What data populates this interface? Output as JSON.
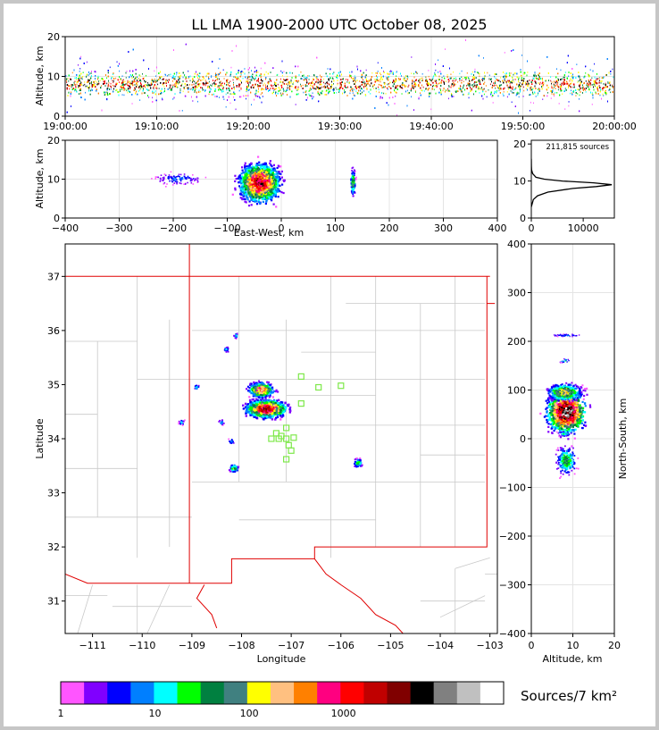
{
  "title": "LL LMA 1900-2000 UTC October 08, 2025",
  "chart_data": [
    {
      "id": "time-height",
      "type": "scatter",
      "xlabel": "",
      "ylabel": "Altitude, km",
      "x_ticks": [
        "19:00:00",
        "19:10:00",
        "19:20:00",
        "19:30:00",
        "19:40:00",
        "19:50:00",
        "20:00:00"
      ],
      "xlim": [
        "19:00:00",
        "20:00:00"
      ],
      "ylim": [
        0,
        20
      ],
      "y_ticks": [
        0,
        10,
        20
      ],
      "series": [
        {
          "description_level": "dense band",
          "altitude_core_km": [
            5,
            11
          ],
          "altitude_range_km": [
            1,
            18
          ]
        }
      ]
    },
    {
      "id": "ew-height",
      "type": "scatter",
      "xlabel": "East-West, km",
      "ylabel": "Altitude, km",
      "xlim": [
        -400,
        400
      ],
      "x_ticks": [
        -400,
        -300,
        -200,
        -100,
        0,
        100,
        200,
        300,
        400
      ],
      "ylim": [
        0,
        20
      ],
      "y_ticks": [
        0,
        10,
        20
      ],
      "clusters": [
        {
          "x": -40,
          "y": 9,
          "peak_density": 1000
        },
        {
          "x": -190,
          "y": 10,
          "peak_density": 5
        },
        {
          "x": 133,
          "y": 9,
          "peak_density": 40
        }
      ]
    },
    {
      "id": "altitude-histogram",
      "type": "line",
      "annotation": "211,815 sources",
      "xlim": [
        0,
        16000
      ],
      "x_ticks": [
        0,
        10000
      ],
      "ylim": [
        0,
        21
      ],
      "y_ticks": [
        0,
        10,
        20
      ],
      "profile": [
        {
          "alt": 3,
          "count": 0
        },
        {
          "alt": 5,
          "count": 400
        },
        {
          "alt": 6,
          "count": 1200
        },
        {
          "alt": 7,
          "count": 3200
        },
        {
          "alt": 8,
          "count": 8000
        },
        {
          "alt": 8.5,
          "count": 12500
        },
        {
          "alt": 9,
          "count": 15500
        },
        {
          "alt": 9.5,
          "count": 12000
        },
        {
          "alt": 10,
          "count": 6000
        },
        {
          "alt": 10.5,
          "count": 2500
        },
        {
          "alt": 11,
          "count": 900
        },
        {
          "alt": 12,
          "count": 250
        },
        {
          "alt": 13,
          "count": 60
        },
        {
          "alt": 14,
          "count": 10
        },
        {
          "alt": 16,
          "count": 0
        }
      ]
    },
    {
      "id": "plan-view",
      "type": "scatter",
      "xlabel": "Longitude",
      "ylabel": "Latitude",
      "xlim": [
        -111.55,
        -102.85
      ],
      "x_ticks": [
        -111,
        -110,
        -109,
        -108,
        -107,
        -106,
        -105,
        -104,
        -103
      ],
      "ylim": [
        30.4,
        37.6
      ],
      "y_ticks": [
        31,
        32,
        33,
        34,
        35,
        36,
        37
      ],
      "clusters": [
        {
          "lon": -107.5,
          "lat": 34.55,
          "peak_density": 1000
        },
        {
          "lon": -107.6,
          "lat": 34.9,
          "peak_density": 300
        },
        {
          "lon": -108.15,
          "lat": 33.45,
          "peak_density": 30
        },
        {
          "lon": -105.65,
          "lat": 33.55,
          "peak_density": 20
        }
      ],
      "stations": [
        {
          "lon": -106.8,
          "lat": 35.15
        },
        {
          "lon": -106.45,
          "lat": 34.95
        },
        {
          "lon": -106.0,
          "lat": 34.98
        },
        {
          "lon": -106.8,
          "lat": 34.65
        },
        {
          "lon": -107.1,
          "lat": 34.2
        },
        {
          "lon": -107.3,
          "lat": 34.1
        },
        {
          "lon": -107.2,
          "lat": 34.05
        },
        {
          "lon": -107.1,
          "lat": 34.0
        },
        {
          "lon": -106.95,
          "lat": 34.02
        },
        {
          "lon": -107.4,
          "lat": 34.0
        },
        {
          "lon": -107.05,
          "lat": 33.88
        },
        {
          "lon": -107.0,
          "lat": 33.78
        },
        {
          "lon": -107.1,
          "lat": 33.62
        },
        {
          "lon": -107.25,
          "lat": 34.0
        }
      ]
    },
    {
      "id": "ns-height",
      "type": "scatter",
      "xlabel": "Altitude, km",
      "ylabel": "North-South, km",
      "xlim": [
        0,
        20
      ],
      "x_ticks": [
        0,
        10,
        20
      ],
      "ylim": [
        -400,
        400
      ],
      "y_ticks": [
        -400,
        -300,
        -200,
        -100,
        0,
        100,
        200,
        300,
        400
      ]
    }
  ],
  "colorbar": {
    "label": "Sources/7 km²",
    "tick_labels": [
      "1",
      "10",
      "100",
      "1000"
    ],
    "colors": [
      "#ff55ff",
      "#8000ff",
      "#0000ff",
      "#007fff",
      "#00ffff",
      "#00ff00",
      "#008040",
      "#408080",
      "#ffff00",
      "#ffc080",
      "#ff8000",
      "#ff0080",
      "#ff0000",
      "#c00000",
      "#800000",
      "#000000",
      "#808080",
      "#c0c0c0",
      "#ffffff"
    ]
  }
}
